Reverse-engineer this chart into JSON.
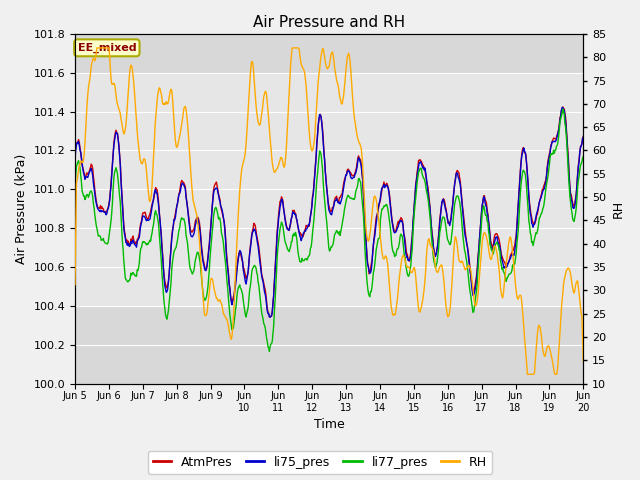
{
  "title": "Air Pressure and RH",
  "ylabel_left": "Air Pressure (kPa)",
  "ylabel_right": "RH",
  "xlabel": "Time",
  "annotation": "EE_mixed",
  "ylim_left": [
    100.0,
    101.8
  ],
  "ylim_right": [
    10,
    85
  ],
  "yticks_left": [
    100.0,
    100.2,
    100.4,
    100.6,
    100.8,
    101.0,
    101.2,
    101.4,
    101.6,
    101.8
  ],
  "yticks_right": [
    10,
    15,
    20,
    25,
    30,
    35,
    40,
    45,
    50,
    55,
    60,
    65,
    70,
    75,
    80,
    85
  ],
  "xtick_labels": [
    "Jun 5",
    "Jun 6",
    "Jun 7",
    "Jun 8",
    "Jun 9",
    "Jun\n10",
    "Jun\n11",
    "Jun\n12",
    "Jun\n13",
    "Jun\n14",
    "Jun\n15",
    "Jun\n16",
    "Jun\n17",
    "Jun\n18",
    "Jun\n19",
    "Jun\n20"
  ],
  "legend": [
    "AtmPres",
    "li75_pres",
    "li77_pres",
    "RH"
  ],
  "colors": {
    "AtmPres": "#cc0000",
    "li75_pres": "#0000cc",
    "li77_pres": "#00bb00",
    "RH": "#ffaa00"
  },
  "bg_color_mid": "#e6e6e6",
  "bg_color_outer": "#d8d8d8",
  "fig_bg": "#f0f0f0",
  "n_days": 15,
  "n_pts": 720,
  "figsize": [
    6.4,
    4.8
  ],
  "dpi": 100
}
